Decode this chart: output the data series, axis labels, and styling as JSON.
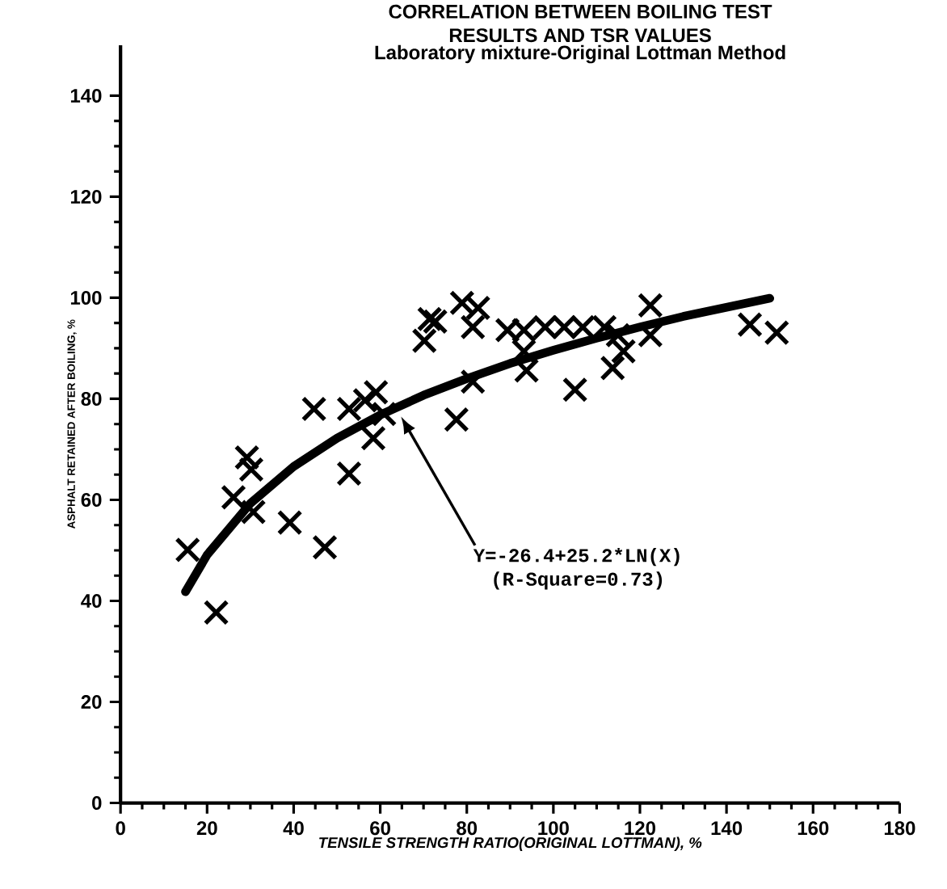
{
  "chart_data": {
    "type": "scatter",
    "title": "CORRELATION BETWEEN BOILING TEST RESULTS AND TSR VALUES",
    "subtitle": "Laboratory mixture-Original Lottman Method",
    "xlabel": "TENSILE STRENGTH RATIO(ORIGINAL LOTTMAN), %",
    "ylabel": "ASPHALT RETAINED AFTER BOILING, %",
    "xlim": [
      0,
      180
    ],
    "ylim": [
      0,
      150
    ],
    "xticks": [
      0,
      20,
      40,
      60,
      80,
      100,
      120,
      140,
      160,
      180
    ],
    "yticks": [
      0,
      20,
      40,
      60,
      80,
      100,
      120,
      140
    ],
    "grid": false,
    "annotations": [
      "Y=-26.4+25.2*LN(X)",
      "(R-Square=0.73)"
    ],
    "series": [
      {
        "color": "#000000",
        "marker": "cross",
        "x": [
          15.5,
          22.1,
          29.2,
          30.2,
          26.1,
          30.7,
          39.1,
          47.2,
          44.7,
          52.8,
          52.8,
          56.5,
          59,
          58.4,
          60.9,
          70.2,
          71.4,
          72.7,
          78.9,
          82.6,
          81.4,
          89.4,
          93.2,
          98.1,
          102.5,
          106.8,
          111.8,
          114.9,
          122.4,
          122.4,
          81.4,
          77.6,
          93.8,
          93.2,
          105,
          113.7,
          116.2,
          145.4,
          151.6
        ],
        "values": [
          50.1,
          37.7,
          68.4,
          66,
          60.5,
          57.6,
          55.5,
          50.6,
          78,
          65.2,
          78,
          79.7,
          81.3,
          72.2,
          77,
          91.5,
          95.8,
          95.3,
          99,
          98,
          94.2,
          93.6,
          93.6,
          94.2,
          94.2,
          94.2,
          94.2,
          92.6,
          98.5,
          92.6,
          83.4,
          75.9,
          85.6,
          89.4,
          81.8,
          86.1,
          89.4,
          94.7,
          93.1
        ]
      },
      {
        "type": "line",
        "color": "#000000",
        "marker": "none",
        "line_style": "solid",
        "x": [
          15,
          20,
          30,
          40,
          50,
          60,
          70,
          80,
          90,
          100,
          110,
          120,
          130,
          140,
          150
        ],
        "values": [
          41.8,
          49.1,
          59.3,
          66.6,
          72.2,
          76.8,
          80.7,
          84,
          87,
          89.6,
          92,
          94.2,
          96.3,
          98.1,
          99.9
        ]
      }
    ]
  }
}
